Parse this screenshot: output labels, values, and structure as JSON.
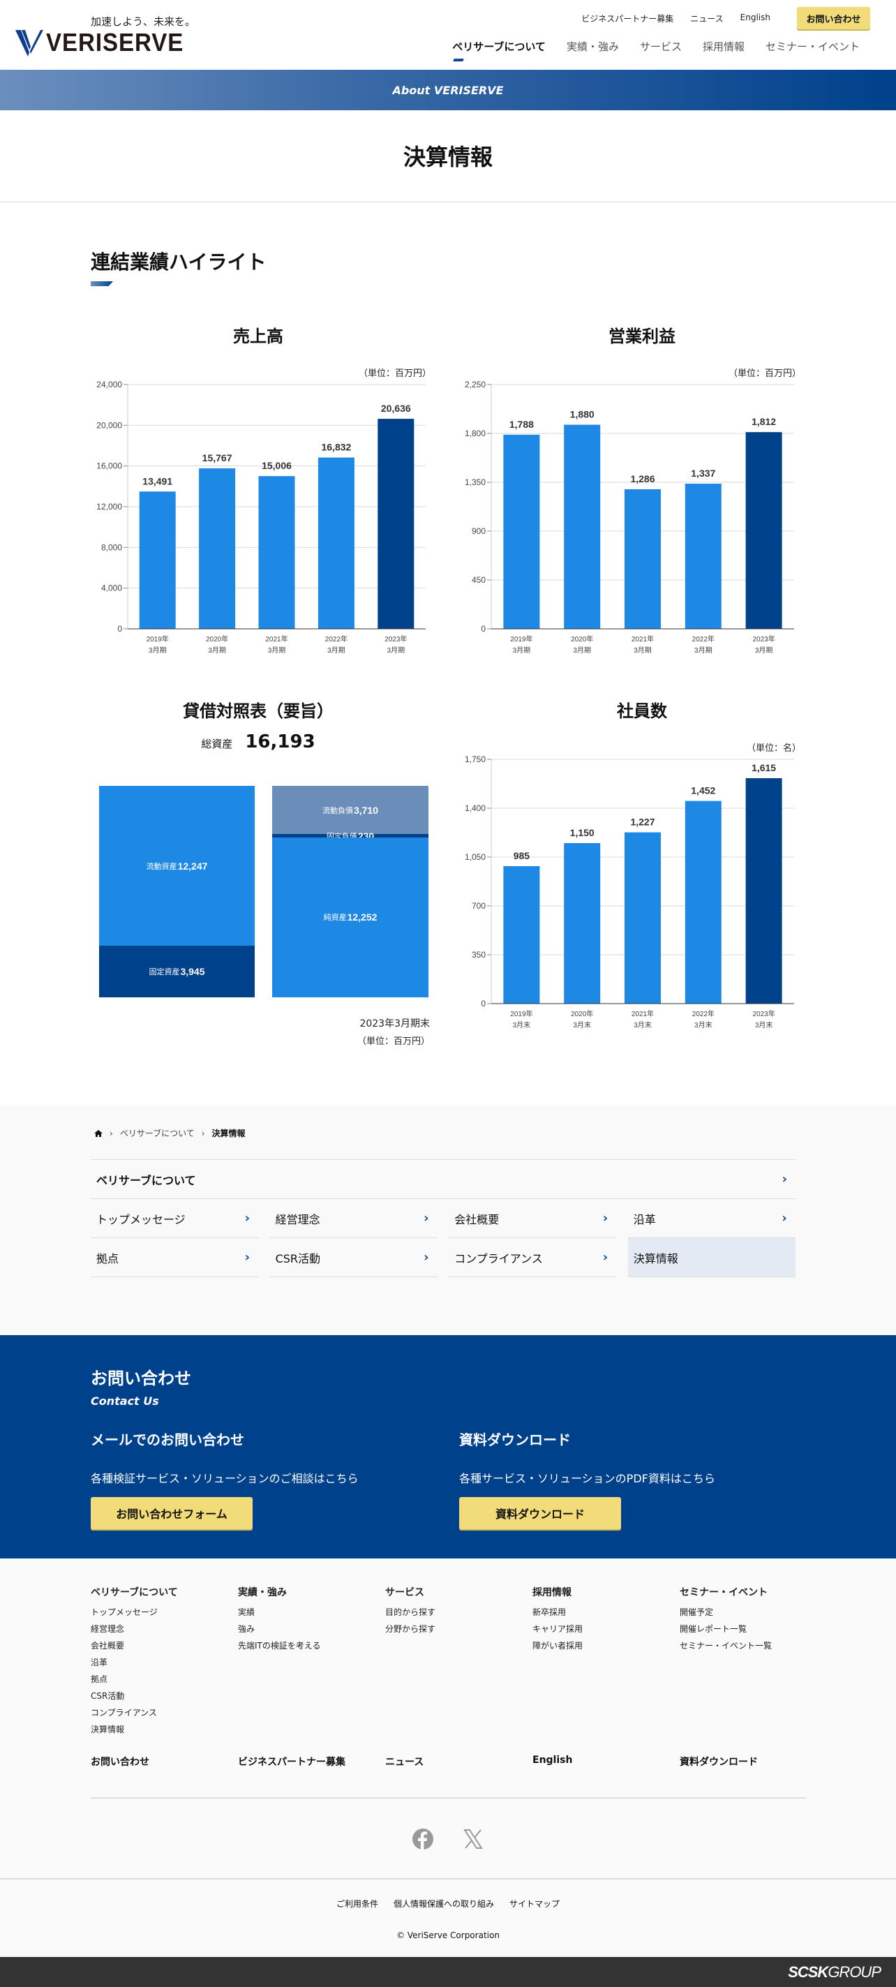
{
  "header": {
    "tagline": "加速しよう、未来を。",
    "logo_text": "VERISERVE",
    "top_links": [
      "ビジネスパートナー募集",
      "ニュース",
      "English"
    ],
    "contact_button": "お問い合わせ",
    "nav": [
      "ベリサーブについて",
      "実績・強み",
      "サービス",
      "採用情報",
      "セミナー・イベント"
    ],
    "active_nav": 0
  },
  "banner": "About VERISERVE",
  "page_title": "決算情報",
  "section_title": "連結業績ハイライト",
  "colors": {
    "bar": "#1e88e5",
    "bar_latest": "#00418c",
    "brand": "#00418c",
    "accent_yellow": "#f2dc7a",
    "bs_liability": "#6a8db9"
  },
  "chart_data": [
    {
      "type": "bar",
      "title": "売上高",
      "unit": "（単位：百万円）",
      "categories": [
        "2019年3月期",
        "2020年3月期",
        "2021年3月期",
        "2022年3月期",
        "2023年3月期"
      ],
      "values": [
        13491,
        15767,
        15006,
        16832,
        20636
      ],
      "value_labels": [
        "13,491",
        "15,767",
        "15,006",
        "16,832",
        "20,636"
      ],
      "ylim": [
        0,
        24000
      ],
      "yticks": [
        "0",
        "4,000",
        "8,000",
        "12,000",
        "16,000",
        "20,000",
        "24,000"
      ],
      "grid": true
    },
    {
      "type": "bar",
      "title": "営業利益",
      "unit": "（単位：百万円）",
      "categories": [
        "2019年3月期",
        "2020年3月期",
        "2021年3月期",
        "2022年3月期",
        "2023年3月期"
      ],
      "values": [
        1788,
        1880,
        1286,
        1337,
        1812
      ],
      "value_labels": [
        "1,788",
        "1,880",
        "1,286",
        "1,337",
        "1,812"
      ],
      "ylim": [
        0,
        2250
      ],
      "yticks": [
        "0",
        "450",
        "900",
        "1,350",
        "1,800",
        "2,250"
      ],
      "grid": true
    },
    {
      "type": "bar",
      "title": "貸借対照表（要旨）",
      "total_label": "総資産",
      "total_value": "16,193",
      "period": "2023年3月期末",
      "unit": "（単位：百万円）",
      "assets": [
        {
          "name": "流動資産",
          "value": 12247,
          "label": "12,247"
        },
        {
          "name": "固定資産",
          "value": 3945,
          "label": "3,945"
        }
      ],
      "liabilities": [
        {
          "name": "流動負債",
          "value": 3710,
          "label": "3,710"
        },
        {
          "name": "固定負債",
          "value": 230,
          "label": "230"
        },
        {
          "name": "純資産",
          "value": 12252,
          "label": "12,252"
        }
      ]
    },
    {
      "type": "bar",
      "title": "社員数",
      "unit": "（単位：名）",
      "categories": [
        "2019年3月末",
        "2020年3月末",
        "2021年3月末",
        "2022年3月末",
        "2023年3月末"
      ],
      "values": [
        985,
        1150,
        1227,
        1452,
        1615
      ],
      "value_labels": [
        "985",
        "1,150",
        "1,227",
        "1,452",
        "1,615"
      ],
      "ylim": [
        0,
        1750
      ],
      "yticks": [
        "0",
        "350",
        "700",
        "1,050",
        "1,400",
        "1,750"
      ],
      "grid": true
    }
  ],
  "breadcrumb": {
    "parent": "ベリサーブについて",
    "current": "決算情報"
  },
  "subnav": {
    "heading": "ベリサーブについて",
    "items": [
      "トップメッセージ",
      "経営理念",
      "会社概要",
      "沿革",
      "拠点",
      "CSR活動",
      "コンプライアンス",
      "決算情報"
    ],
    "current": 7
  },
  "contact": {
    "title": "お問い合わせ",
    "subtitle": "Contact Us",
    "mail": {
      "heading": "メールでのお問い合わせ",
      "text": "各種検証サービス・ソリューションのご相談はこちら",
      "button": "お問い合わせフォーム"
    },
    "download": {
      "heading": "資料ダウンロード",
      "text": "各種サービス・ソリューションのPDF資料はこちら",
      "button": "資料ダウンロード"
    }
  },
  "footer": {
    "columns": [
      {
        "heading": "ベリサーブについて",
        "items": [
          "トップメッセージ",
          "経営理念",
          "会社概要",
          "沿革",
          "拠点",
          "CSR活動",
          "コンプライアンス",
          "決算情報"
        ]
      },
      {
        "heading": "実績・強み",
        "items": [
          "実績",
          "強み",
          "先端ITの検証を考える"
        ]
      },
      {
        "heading": "サービス",
        "items": [
          "目的から探す",
          "分野から探す"
        ]
      },
      {
        "heading": "採用情報",
        "items": [
          "新卒採用",
          "キャリア採用",
          "障がい者採用"
        ]
      },
      {
        "heading": "セミナー・イベント",
        "items": [
          "開催予定",
          "開催レポート一覧",
          "セミナー・イベント一覧"
        ]
      }
    ],
    "bottom_links": [
      "お問い合わせ",
      "ビジネスパートナー募集",
      "ニュース",
      "English",
      "資料ダウンロード"
    ],
    "social": [
      "facebook-icon",
      "x-icon"
    ],
    "legal": [
      "ご利用条件",
      "個人情報保護への取り組み",
      "サイトマップ"
    ],
    "copyright": "© VeriServe Corporation",
    "group_logo": "SCSK GROUP"
  }
}
